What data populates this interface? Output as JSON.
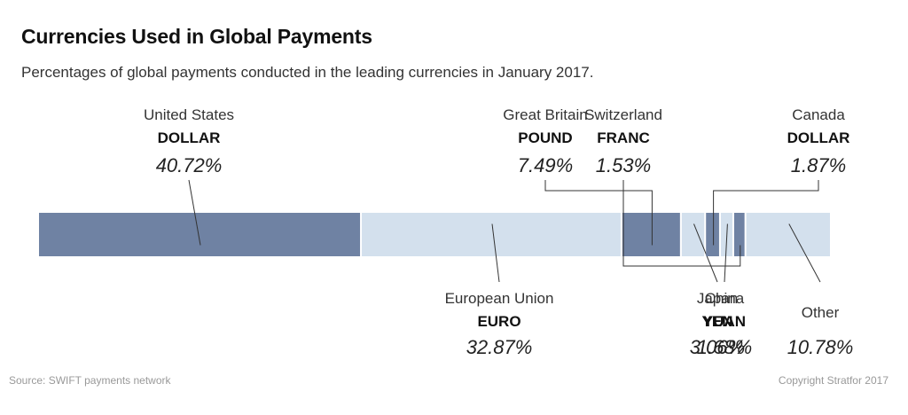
{
  "title": "Currencies Used in Global Payments",
  "subtitle": "Percentages of global payments conducted in the leading currencies in January 2017.",
  "source": "Source: SWIFT payments network",
  "copyright": "Copyright Stratfor 2017",
  "colors": {
    "dark": "#6f82a3",
    "light": "#d3e0ed",
    "line": "#333333"
  },
  "chart_data": {
    "type": "bar",
    "orientation": "horizontal-stacked",
    "segments": [
      {
        "country": "United States",
        "currency": "DOLLAR",
        "label": "40.72%",
        "value": 40.72,
        "shade": "dark",
        "label_pos": "top"
      },
      {
        "country": "European Union",
        "currency": "EURO",
        "label": "32.87%",
        "value": 32.87,
        "shade": "light",
        "label_pos": "bottom"
      },
      {
        "country": "Great Britain",
        "currency": "POUND",
        "label": "7.49%",
        "value": 7.49,
        "shade": "dark",
        "label_pos": "top"
      },
      {
        "country": "Japan",
        "currency": "YEN",
        "label": "3.06%",
        "value": 3.06,
        "shade": "light",
        "label_pos": "bottom"
      },
      {
        "country": "Canada",
        "currency": "DOLLAR",
        "label": "1.87%",
        "value": 1.87,
        "shade": "dark",
        "label_pos": "top"
      },
      {
        "country": "China",
        "currency": "YUAN",
        "label": "1.68%",
        "value": 1.68,
        "shade": "light",
        "label_pos": "bottom"
      },
      {
        "country": "Switzerland",
        "currency": "FRANC",
        "label": "1.53%",
        "value": 1.53,
        "shade": "dark",
        "label_pos": "top"
      },
      {
        "country": "Other",
        "currency": "",
        "label": "10.78%",
        "value": 10.78,
        "shade": "light",
        "label_pos": "bottom"
      }
    ]
  }
}
